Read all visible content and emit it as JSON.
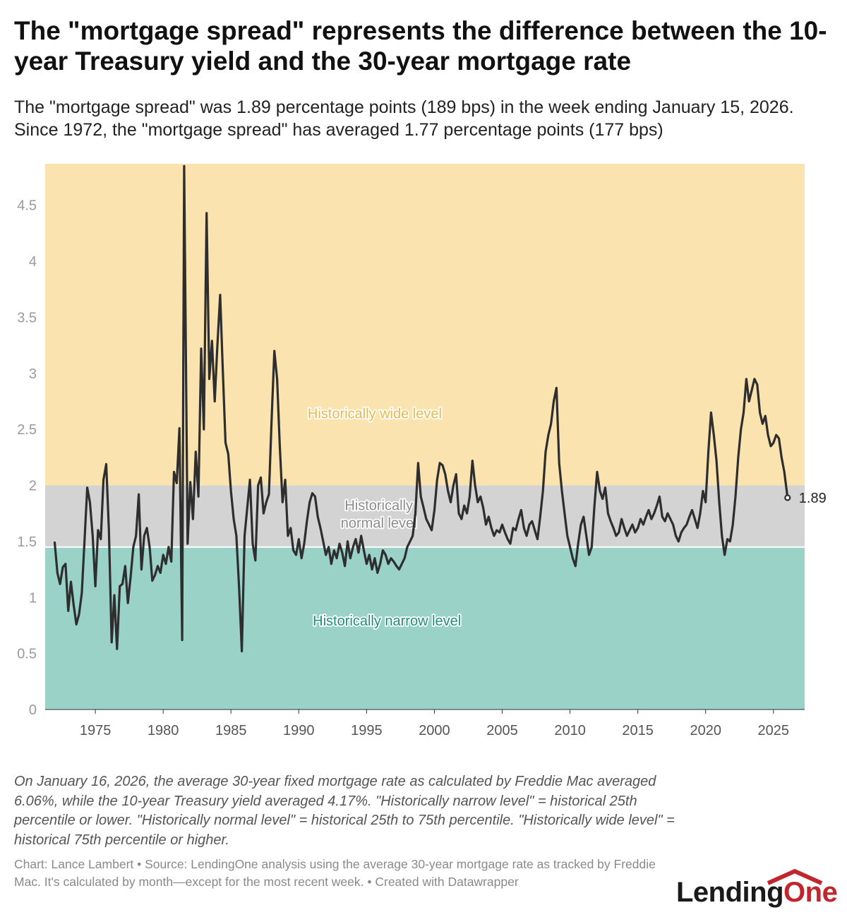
{
  "header": {
    "title": "The \"mortgage spread\" represents the difference between the 10-year Treasury yield and the 30-year mortgage rate",
    "subtitle": "The \"mortgage spread\" was 1.89 percentage points (189 bps) in the week ending January 15, 2026. Since 1972, the \"mortgage spread\" has averaged 1.77 percentage points (177 bps)"
  },
  "footer": {
    "notes": "On January 16, 2026, the average 30-year fixed mortgage rate as calculated by Freddie Mac averaged 6.06%, while the 10-year Treasury yield averaged 4.17%. \"Historically narrow level\" = historical 25th percentile or lower. \"Historically normal level\" = historical 25th to 75th percentile. \"Historically wide level\" = historical 75th percentile or higher.",
    "source": "Chart: Lance Lambert • Source: LendingOne analysis using the average 30-year mortgage rate as tracked by Freddie Mac. It's calculated by month—except for the most recent week. • Created with Datawrapper"
  },
  "logo": {
    "part1": "Lending",
    "part2": "One",
    "color_dark": "#1a1a1a",
    "color_red": "#c0262c"
  },
  "chart_data": {
    "type": "line",
    "title": "",
    "xlabel": "",
    "ylabel": "",
    "xlim": [
      1971.3,
      2027.3
    ],
    "ylim": [
      0,
      4.87
    ],
    "x_ticks": [
      1975,
      1980,
      1985,
      1990,
      1995,
      2000,
      2005,
      2010,
      2015,
      2020,
      2025
    ],
    "y_ticks": [
      0,
      0.5,
      1,
      1.5,
      2,
      2.5,
      3,
      3.5,
      4,
      4.5
    ],
    "grid": false,
    "bands": [
      {
        "name": "Historically narrow level",
        "from": 0,
        "to": 1.45,
        "color": "#9ad2c8",
        "label_color": "#1f8f79",
        "label_year": 1996.5,
        "label_value": 0.75
      },
      {
        "name": "Historically normal level",
        "label_lines": [
          "Historically",
          "normal level"
        ],
        "from": 1.45,
        "to": 2.0,
        "color": "#d3d3d3",
        "label_color": "#8c8c8c",
        "label_year": 1995.9,
        "label_value": 1.78
      },
      {
        "name": "Historically wide level",
        "from": 2.0,
        "to": 4.87,
        "color": "#fbe3af",
        "label_color": "#e8b94b",
        "label_year": 1995.6,
        "label_value": 2.6
      }
    ],
    "line_color": "#2e2e2e",
    "end_label": "1.89",
    "series": [
      {
        "name": "",
        "points": [
          [
            1972.0,
            1.49
          ],
          [
            1972.2,
            1.22
          ],
          [
            1972.4,
            1.12
          ],
          [
            1972.6,
            1.27
          ],
          [
            1972.8,
            1.3
          ],
          [
            1973.0,
            0.88
          ],
          [
            1973.2,
            1.14
          ],
          [
            1973.4,
            0.93
          ],
          [
            1973.6,
            0.76
          ],
          [
            1973.8,
            0.85
          ],
          [
            1974.0,
            1.04
          ],
          [
            1974.2,
            1.5
          ],
          [
            1974.4,
            1.98
          ],
          [
            1974.6,
            1.85
          ],
          [
            1974.8,
            1.55
          ],
          [
            1975.0,
            1.1
          ],
          [
            1975.2,
            1.6
          ],
          [
            1975.4,
            1.52
          ],
          [
            1975.6,
            2.05
          ],
          [
            1975.8,
            2.19
          ],
          [
            1976.0,
            1.6
          ],
          [
            1976.2,
            0.6
          ],
          [
            1976.4,
            1.02
          ],
          [
            1976.6,
            0.54
          ],
          [
            1976.8,
            1.1
          ],
          [
            1977.0,
            1.12
          ],
          [
            1977.2,
            1.28
          ],
          [
            1977.4,
            0.95
          ],
          [
            1977.6,
            1.18
          ],
          [
            1977.8,
            1.45
          ],
          [
            1978.0,
            1.55
          ],
          [
            1978.2,
            1.92
          ],
          [
            1978.4,
            1.25
          ],
          [
            1978.6,
            1.55
          ],
          [
            1978.8,
            1.62
          ],
          [
            1979.0,
            1.45
          ],
          [
            1979.2,
            1.15
          ],
          [
            1979.4,
            1.2
          ],
          [
            1979.6,
            1.28
          ],
          [
            1979.8,
            1.22
          ],
          [
            1980.0,
            1.38
          ],
          [
            1980.2,
            1.3
          ],
          [
            1980.4,
            1.45
          ],
          [
            1980.6,
            1.32
          ],
          [
            1980.8,
            2.12
          ],
          [
            1981.0,
            2.02
          ],
          [
            1981.2,
            2.51
          ],
          [
            1981.4,
            0.62
          ],
          [
            1981.55,
            4.85
          ],
          [
            1981.8,
            1.48
          ],
          [
            1982.0,
            2.03
          ],
          [
            1982.2,
            1.7
          ],
          [
            1982.4,
            2.3
          ],
          [
            1982.6,
            1.9
          ],
          [
            1982.8,
            3.22
          ],
          [
            1983.0,
            2.5
          ],
          [
            1983.2,
            4.43
          ],
          [
            1983.4,
            2.95
          ],
          [
            1983.6,
            3.29
          ],
          [
            1983.8,
            2.75
          ],
          [
            1984.0,
            3.25
          ],
          [
            1984.2,
            3.7
          ],
          [
            1984.4,
            3.02
          ],
          [
            1984.6,
            2.38
          ],
          [
            1984.8,
            2.28
          ],
          [
            1985.0,
            1.95
          ],
          [
            1985.2,
            1.7
          ],
          [
            1985.4,
            1.55
          ],
          [
            1985.6,
            1.08
          ],
          [
            1985.8,
            0.52
          ],
          [
            1986.0,
            1.55
          ],
          [
            1986.2,
            1.8
          ],
          [
            1986.4,
            2.05
          ],
          [
            1986.6,
            1.48
          ],
          [
            1986.8,
            1.33
          ],
          [
            1987.0,
            2.0
          ],
          [
            1987.2,
            2.07
          ],
          [
            1987.4,
            1.75
          ],
          [
            1987.6,
            1.85
          ],
          [
            1987.8,
            1.92
          ],
          [
            1988.0,
            2.6
          ],
          [
            1988.2,
            3.2
          ],
          [
            1988.4,
            2.95
          ],
          [
            1988.6,
            2.35
          ],
          [
            1988.8,
            1.85
          ],
          [
            1989.0,
            2.05
          ],
          [
            1989.2,
            1.55
          ],
          [
            1989.4,
            1.62
          ],
          [
            1989.6,
            1.42
          ],
          [
            1989.8,
            1.38
          ],
          [
            1990.0,
            1.52
          ],
          [
            1990.2,
            1.35
          ],
          [
            1990.4,
            1.48
          ],
          [
            1990.6,
            1.68
          ],
          [
            1990.8,
            1.85
          ],
          [
            1991.0,
            1.93
          ],
          [
            1991.2,
            1.9
          ],
          [
            1991.4,
            1.72
          ],
          [
            1991.6,
            1.62
          ],
          [
            1991.8,
            1.5
          ],
          [
            1992.0,
            1.38
          ],
          [
            1992.2,
            1.45
          ],
          [
            1992.4,
            1.3
          ],
          [
            1992.6,
            1.42
          ],
          [
            1992.8,
            1.35
          ],
          [
            1993.0,
            1.48
          ],
          [
            1993.2,
            1.4
          ],
          [
            1993.4,
            1.28
          ],
          [
            1993.6,
            1.5
          ],
          [
            1993.8,
            1.35
          ],
          [
            1994.0,
            1.45
          ],
          [
            1994.2,
            1.52
          ],
          [
            1994.4,
            1.4
          ],
          [
            1994.6,
            1.55
          ],
          [
            1994.8,
            1.42
          ],
          [
            1995.0,
            1.3
          ],
          [
            1995.2,
            1.38
          ],
          [
            1995.4,
            1.25
          ],
          [
            1995.6,
            1.35
          ],
          [
            1995.8,
            1.22
          ],
          [
            1996.0,
            1.3
          ],
          [
            1996.2,
            1.42
          ],
          [
            1996.4,
            1.38
          ],
          [
            1996.6,
            1.3
          ],
          [
            1996.8,
            1.35
          ],
          [
            1997.0,
            1.32
          ],
          [
            1997.2,
            1.28
          ],
          [
            1997.4,
            1.25
          ],
          [
            1997.6,
            1.3
          ],
          [
            1997.8,
            1.35
          ],
          [
            1998.0,
            1.45
          ],
          [
            1998.2,
            1.5
          ],
          [
            1998.4,
            1.55
          ],
          [
            1998.6,
            1.75
          ],
          [
            1998.8,
            2.2
          ],
          [
            1999.0,
            1.9
          ],
          [
            1999.2,
            1.8
          ],
          [
            1999.4,
            1.7
          ],
          [
            1999.6,
            1.65
          ],
          [
            1999.8,
            1.6
          ],
          [
            2000.0,
            1.78
          ],
          [
            2000.2,
            2.05
          ],
          [
            2000.4,
            2.2
          ],
          [
            2000.6,
            2.18
          ],
          [
            2000.8,
            2.1
          ],
          [
            2001.0,
            1.95
          ],
          [
            2001.2,
            1.85
          ],
          [
            2001.4,
            2.0
          ],
          [
            2001.6,
            2.1
          ],
          [
            2001.8,
            1.75
          ],
          [
            2002.0,
            1.7
          ],
          [
            2002.2,
            1.82
          ],
          [
            2002.4,
            1.75
          ],
          [
            2002.6,
            1.9
          ],
          [
            2002.8,
            2.22
          ],
          [
            2003.0,
            2.0
          ],
          [
            2003.2,
            1.85
          ],
          [
            2003.4,
            1.9
          ],
          [
            2003.6,
            1.8
          ],
          [
            2003.8,
            1.65
          ],
          [
            2004.0,
            1.72
          ],
          [
            2004.2,
            1.62
          ],
          [
            2004.4,
            1.55
          ],
          [
            2004.6,
            1.6
          ],
          [
            2004.8,
            1.58
          ],
          [
            2005.0,
            1.65
          ],
          [
            2005.2,
            1.58
          ],
          [
            2005.4,
            1.52
          ],
          [
            2005.6,
            1.48
          ],
          [
            2005.8,
            1.62
          ],
          [
            2006.0,
            1.6
          ],
          [
            2006.2,
            1.7
          ],
          [
            2006.4,
            1.78
          ],
          [
            2006.6,
            1.62
          ],
          [
            2006.8,
            1.55
          ],
          [
            2007.0,
            1.65
          ],
          [
            2007.2,
            1.68
          ],
          [
            2007.4,
            1.6
          ],
          [
            2007.6,
            1.52
          ],
          [
            2007.8,
            1.72
          ],
          [
            2008.0,
            1.95
          ],
          [
            2008.2,
            2.3
          ],
          [
            2008.4,
            2.45
          ],
          [
            2008.6,
            2.55
          ],
          [
            2008.8,
            2.75
          ],
          [
            2009.0,
            2.87
          ],
          [
            2009.2,
            2.2
          ],
          [
            2009.4,
            1.95
          ],
          [
            2009.6,
            1.75
          ],
          [
            2009.8,
            1.55
          ],
          [
            2010.0,
            1.45
          ],
          [
            2010.2,
            1.35
          ],
          [
            2010.4,
            1.28
          ],
          [
            2010.6,
            1.48
          ],
          [
            2010.8,
            1.65
          ],
          [
            2011.0,
            1.72
          ],
          [
            2011.2,
            1.55
          ],
          [
            2011.4,
            1.38
          ],
          [
            2011.6,
            1.45
          ],
          [
            2011.8,
            1.82
          ],
          [
            2012.0,
            2.12
          ],
          [
            2012.2,
            1.95
          ],
          [
            2012.4,
            1.88
          ],
          [
            2012.6,
            1.98
          ],
          [
            2012.8,
            1.75
          ],
          [
            2013.0,
            1.68
          ],
          [
            2013.2,
            1.62
          ],
          [
            2013.4,
            1.55
          ],
          [
            2013.6,
            1.58
          ],
          [
            2013.8,
            1.7
          ],
          [
            2014.0,
            1.62
          ],
          [
            2014.2,
            1.55
          ],
          [
            2014.4,
            1.6
          ],
          [
            2014.6,
            1.65
          ],
          [
            2014.8,
            1.58
          ],
          [
            2015.0,
            1.62
          ],
          [
            2015.2,
            1.7
          ],
          [
            2015.4,
            1.65
          ],
          [
            2015.6,
            1.72
          ],
          [
            2015.8,
            1.78
          ],
          [
            2016.0,
            1.7
          ],
          [
            2016.2,
            1.75
          ],
          [
            2016.4,
            1.82
          ],
          [
            2016.6,
            1.9
          ],
          [
            2016.8,
            1.72
          ],
          [
            2017.0,
            1.68
          ],
          [
            2017.2,
            1.75
          ],
          [
            2017.4,
            1.7
          ],
          [
            2017.6,
            1.65
          ],
          [
            2017.8,
            1.55
          ],
          [
            2018.0,
            1.5
          ],
          [
            2018.2,
            1.58
          ],
          [
            2018.4,
            1.62
          ],
          [
            2018.6,
            1.65
          ],
          [
            2018.8,
            1.72
          ],
          [
            2019.0,
            1.78
          ],
          [
            2019.2,
            1.7
          ],
          [
            2019.4,
            1.62
          ],
          [
            2019.6,
            1.75
          ],
          [
            2019.8,
            1.95
          ],
          [
            2020.0,
            1.85
          ],
          [
            2020.2,
            2.3
          ],
          [
            2020.4,
            2.65
          ],
          [
            2020.6,
            2.45
          ],
          [
            2020.8,
            2.22
          ],
          [
            2021.0,
            1.85
          ],
          [
            2021.2,
            1.55
          ],
          [
            2021.4,
            1.38
          ],
          [
            2021.6,
            1.52
          ],
          [
            2021.8,
            1.5
          ],
          [
            2022.0,
            1.65
          ],
          [
            2022.2,
            1.9
          ],
          [
            2022.4,
            2.25
          ],
          [
            2022.6,
            2.5
          ],
          [
            2022.8,
            2.65
          ],
          [
            2023.0,
            2.95
          ],
          [
            2023.2,
            2.75
          ],
          [
            2023.4,
            2.85
          ],
          [
            2023.6,
            2.95
          ],
          [
            2023.8,
            2.9
          ],
          [
            2024.0,
            2.65
          ],
          [
            2024.2,
            2.55
          ],
          [
            2024.4,
            2.62
          ],
          [
            2024.6,
            2.45
          ],
          [
            2024.8,
            2.35
          ],
          [
            2025.0,
            2.38
          ],
          [
            2025.2,
            2.45
          ],
          [
            2025.4,
            2.42
          ],
          [
            2025.6,
            2.25
          ],
          [
            2025.8,
            2.12
          ],
          [
            2026.04,
            1.89
          ]
        ]
      }
    ]
  }
}
